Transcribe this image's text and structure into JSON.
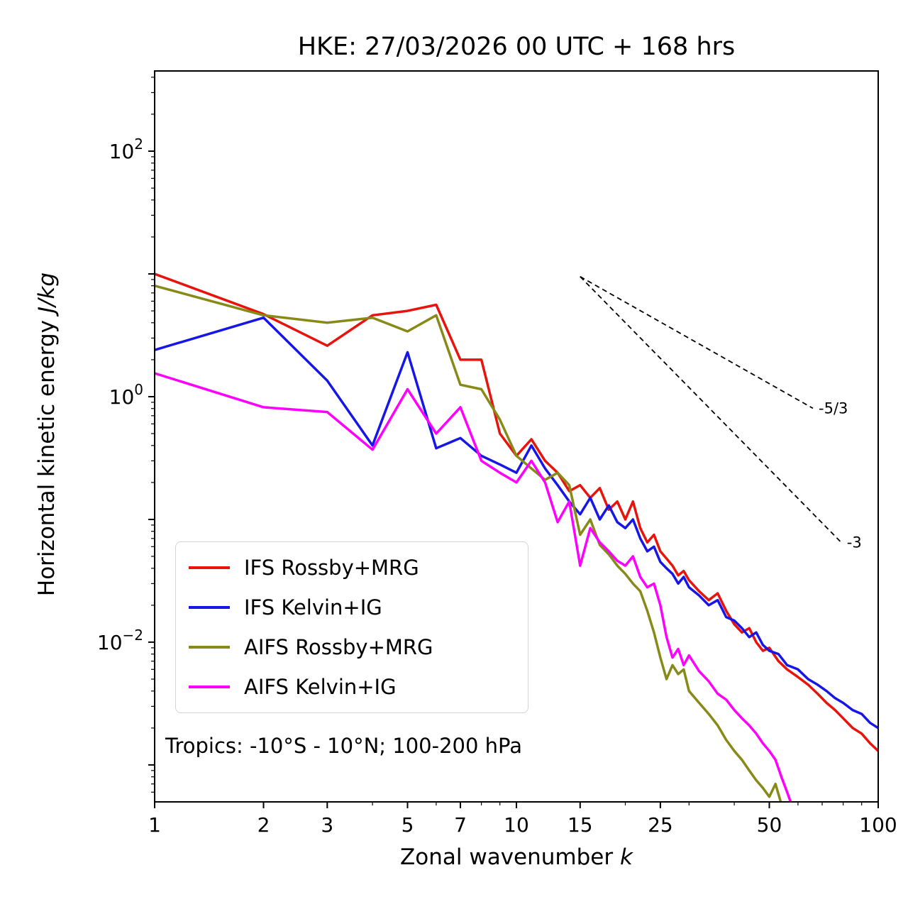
{
  "title": "HKE: 27/03/2026 00 UTC + 168 hrs",
  "xlabel": {
    "text": "Zonal wavenumber ",
    "math": "k"
  },
  "ylabel": {
    "text": "Horizontal kinetic energy ",
    "math": "J/kg"
  },
  "annotation": "Tropics: -10°S - 10°N; 100-200 hPa",
  "chart_data": {
    "type": "line",
    "x_scale": "log",
    "y_scale": "log",
    "xlim": [
      1,
      100
    ],
    "ylim": [
      0.0005,
      450
    ],
    "grid": false,
    "legend_position": "lower left",
    "x_ticks": [
      1,
      2,
      3,
      5,
      7,
      10,
      15,
      25,
      50,
      100
    ],
    "x_minor_ticks": [
      4,
      6,
      8,
      9,
      20,
      30,
      40,
      60,
      70,
      80,
      90
    ],
    "y_ticks": [
      {
        "value": 100,
        "base": "10",
        "exp": "2",
        "labeled": true
      },
      {
        "value": 10,
        "base": "10",
        "exp": "1",
        "labeled": false
      },
      {
        "value": 1,
        "base": "10",
        "exp": "0",
        "labeled": true
      },
      {
        "value": 0.1,
        "base": "10",
        "exp": "−1",
        "labeled": false
      },
      {
        "value": 0.01,
        "base": "10",
        "exp": "−2",
        "labeled": true
      },
      {
        "value": 0.001,
        "base": "10",
        "exp": "−3",
        "labeled": false
      }
    ],
    "reference_lines": [
      {
        "label": "-5/3",
        "slope": -1.667,
        "k_start": 15,
        "k_end": 66,
        "E_start": 9.5
      },
      {
        "label": "-3",
        "slope": -3.0,
        "k_start": 15,
        "k_end": 79,
        "E_start": 9.5
      }
    ],
    "series": [
      {
        "name": "IFS Rossby+MRG",
        "color": "#e8130c",
        "k": [
          1,
          2,
          3,
          4,
          5,
          6,
          7,
          8,
          9,
          10,
          11,
          12,
          13,
          14,
          15,
          16,
          17,
          18,
          19,
          20,
          21,
          22,
          23,
          24,
          25,
          26,
          27,
          28,
          29,
          30,
          32,
          34,
          36,
          38,
          40,
          42,
          44,
          46,
          48,
          50,
          53,
          56,
          60,
          64,
          68,
          72,
          76,
          80,
          85,
          90,
          95,
          100
        ],
        "E": [
          10.0,
          4.7,
          2.6,
          4.6,
          5.0,
          5.6,
          2.0,
          2.0,
          0.5,
          0.33,
          0.45,
          0.3,
          0.24,
          0.17,
          0.19,
          0.15,
          0.18,
          0.12,
          0.14,
          0.1,
          0.14,
          0.085,
          0.065,
          0.075,
          0.055,
          0.048,
          0.042,
          0.035,
          0.038,
          0.032,
          0.026,
          0.022,
          0.025,
          0.018,
          0.014,
          0.012,
          0.013,
          0.01,
          0.0085,
          0.009,
          0.007,
          0.006,
          0.0052,
          0.0045,
          0.0038,
          0.0032,
          0.0028,
          0.0024,
          0.002,
          0.0018,
          0.0015,
          0.0013
        ]
      },
      {
        "name": "IFS Kelvin+IG",
        "color": "#1616e6",
        "k": [
          1,
          2,
          3,
          4,
          5,
          6,
          7,
          8,
          9,
          10,
          11,
          12,
          13,
          14,
          15,
          16,
          17,
          18,
          19,
          20,
          21,
          22,
          23,
          24,
          25,
          26,
          27,
          28,
          29,
          30,
          32,
          34,
          36,
          38,
          40,
          42,
          44,
          46,
          48,
          50,
          53,
          56,
          60,
          64,
          68,
          72,
          76,
          80,
          85,
          90,
          95,
          100
        ],
        "E": [
          2.4,
          4.4,
          1.35,
          0.4,
          2.3,
          0.38,
          0.46,
          0.33,
          0.28,
          0.24,
          0.4,
          0.26,
          0.19,
          0.14,
          0.11,
          0.15,
          0.1,
          0.13,
          0.095,
          0.085,
          0.1,
          0.07,
          0.055,
          0.06,
          0.045,
          0.04,
          0.036,
          0.03,
          0.034,
          0.028,
          0.024,
          0.02,
          0.022,
          0.016,
          0.015,
          0.013,
          0.011,
          0.012,
          0.0095,
          0.0085,
          0.008,
          0.0065,
          0.006,
          0.005,
          0.0045,
          0.004,
          0.0035,
          0.0032,
          0.0028,
          0.0026,
          0.0022,
          0.002
        ]
      },
      {
        "name": "AIFS Rossby+MRG",
        "color": "#878a17",
        "k": [
          1,
          2,
          3,
          4,
          5,
          6,
          7,
          8,
          9,
          10,
          11,
          12,
          13,
          14,
          15,
          16,
          17,
          18,
          19,
          20,
          21,
          22,
          23,
          24,
          25,
          26,
          27,
          28,
          29,
          30,
          32,
          34,
          36,
          38,
          40,
          42,
          44,
          46,
          48,
          50,
          52,
          54,
          56,
          58
        ],
        "E": [
          8.0,
          4.6,
          4.0,
          4.4,
          3.4,
          4.6,
          1.25,
          1.15,
          0.65,
          0.33,
          0.26,
          0.21,
          0.24,
          0.19,
          0.075,
          0.1,
          0.062,
          0.052,
          0.042,
          0.036,
          0.03,
          0.026,
          0.018,
          0.012,
          0.0075,
          0.005,
          0.0065,
          0.0055,
          0.006,
          0.004,
          0.0032,
          0.0026,
          0.0021,
          0.0016,
          0.0013,
          0.0011,
          0.0009,
          0.00075,
          0.00065,
          0.00055,
          0.0007,
          0.00048,
          0.0004,
          0.00032
        ]
      },
      {
        "name": "AIFS Kelvin+IG",
        "color": "#ff00ff",
        "k": [
          1,
          2,
          3,
          4,
          5,
          6,
          7,
          8,
          9,
          10,
          11,
          12,
          13,
          14,
          15,
          16,
          17,
          18,
          19,
          20,
          21,
          22,
          23,
          24,
          25,
          26,
          27,
          28,
          29,
          30,
          32,
          34,
          36,
          38,
          40,
          42,
          44,
          46,
          48,
          50,
          52,
          54,
          56,
          58,
          60
        ],
        "E": [
          1.55,
          0.82,
          0.75,
          0.37,
          1.15,
          0.5,
          0.82,
          0.3,
          0.24,
          0.2,
          0.3,
          0.2,
          0.095,
          0.14,
          0.042,
          0.085,
          0.065,
          0.055,
          0.046,
          0.042,
          0.05,
          0.034,
          0.028,
          0.03,
          0.02,
          0.011,
          0.0075,
          0.0088,
          0.0065,
          0.0078,
          0.0058,
          0.0048,
          0.0038,
          0.0034,
          0.0028,
          0.0024,
          0.0021,
          0.0018,
          0.0015,
          0.0013,
          0.0011,
          0.0008,
          0.0006,
          0.00045,
          0.00035
        ]
      }
    ]
  }
}
